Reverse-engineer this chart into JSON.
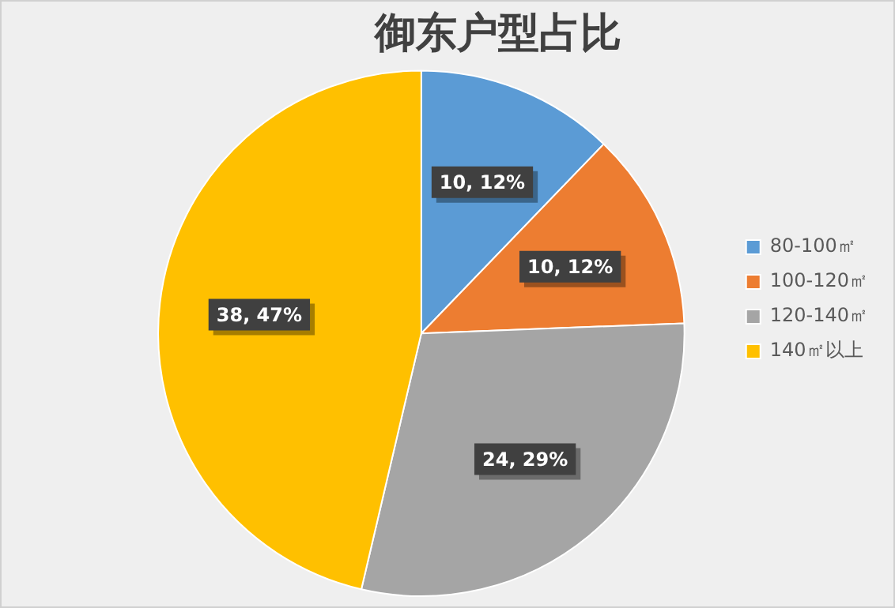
{
  "chart_data": {
    "type": "pie",
    "title": "御东户型占比",
    "categories": [
      "80-100㎡",
      "100-120㎡",
      "120-140㎡",
      "140㎡以上"
    ],
    "values": [
      10,
      10,
      24,
      38
    ],
    "colors": [
      "#5b9bd5",
      "#ed7d31",
      "#a5a5a5",
      "#ffc000"
    ],
    "value_labels": [
      "10, 12%",
      "10, 12%",
      "24, 29%",
      "38, 47%"
    ],
    "legend": "right"
  }
}
